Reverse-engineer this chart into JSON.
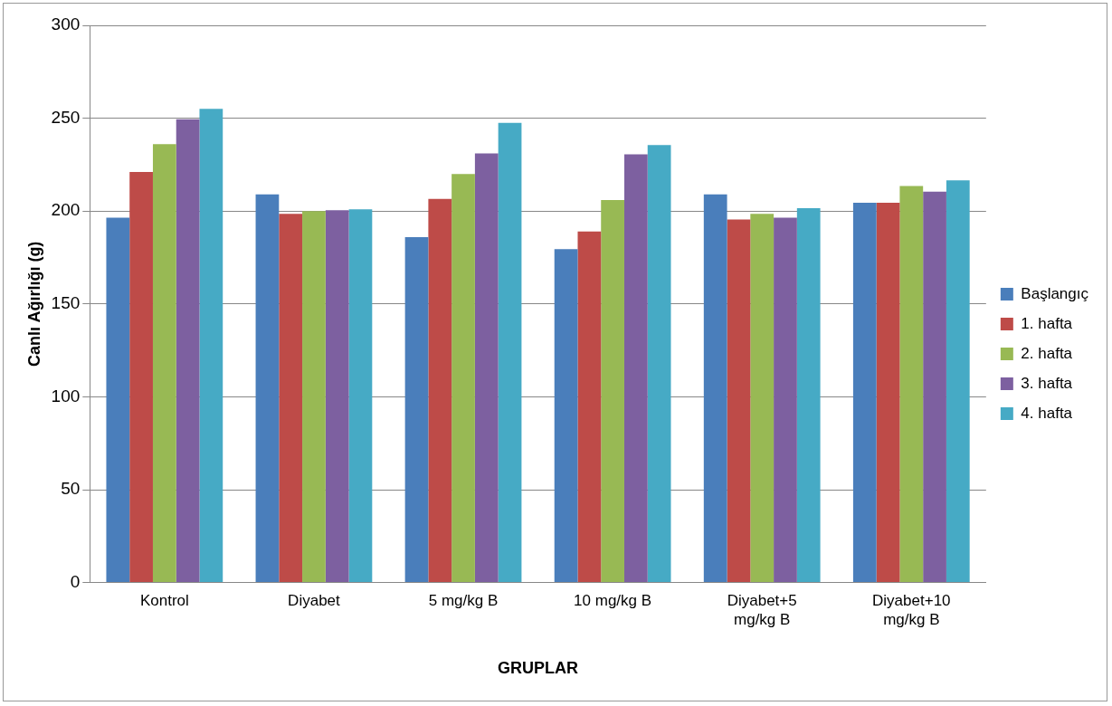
{
  "chart_data": {
    "type": "bar",
    "xlabel": "GRUPLAR",
    "ylabel": "Canlı Ağırlığı (g)",
    "categories": [
      "Kontrol",
      "Diyabet",
      "5 mg/kg B",
      "10 mg/kg B",
      "Diyabet+5\nmg/kg B",
      "Diyabet+10\nmg/kg B"
    ],
    "series": [
      {
        "name": "Başlangıç",
        "color": "#4a7ebb",
        "values": [
          196.5,
          209,
          186,
          179.5,
          209,
          204.5
        ]
      },
      {
        "name": "1. hafta",
        "color": "#be4b48",
        "values": [
          221,
          198.5,
          206.5,
          189,
          195.5,
          204.5
        ]
      },
      {
        "name": "2. hafta",
        "color": "#98b954",
        "values": [
          236,
          200,
          220,
          206,
          198.5,
          213.5
        ]
      },
      {
        "name": "3. hafta",
        "color": "#7d60a0",
        "values": [
          249.5,
          200.5,
          231,
          230.5,
          196.5,
          210.5
        ]
      },
      {
        "name": "4. hafta",
        "color": "#46aac5",
        "values": [
          255,
          201,
          247.5,
          235.5,
          201.5,
          216.5
        ]
      }
    ],
    "ylim": [
      0,
      300
    ],
    "yticks": [
      0,
      50,
      100,
      150,
      200,
      250,
      300
    ],
    "grid": "y",
    "legend": "right"
  }
}
